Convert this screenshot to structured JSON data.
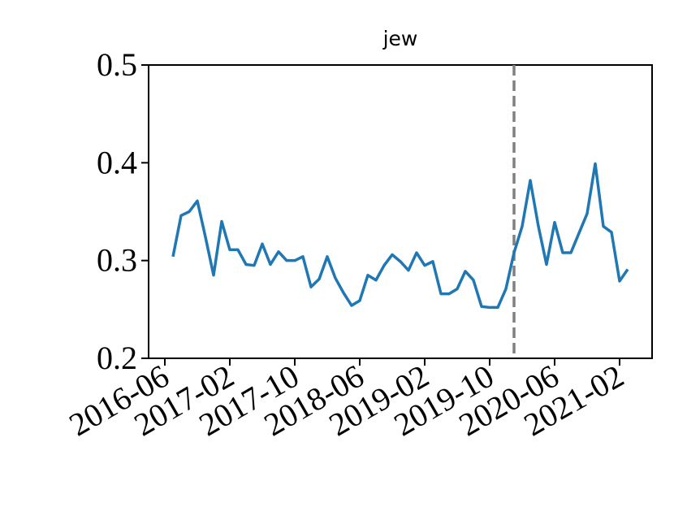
{
  "chart_data": {
    "type": "line",
    "title": "jew",
    "x": [
      "2016-07",
      "2016-08",
      "2016-09",
      "2016-10",
      "2016-11",
      "2016-12",
      "2017-01",
      "2017-02",
      "2017-03",
      "2017-04",
      "2017-05",
      "2017-06",
      "2017-07",
      "2017-08",
      "2017-09",
      "2017-10",
      "2017-11",
      "2017-12",
      "2018-01",
      "2018-02",
      "2018-03",
      "2018-04",
      "2018-05",
      "2018-06",
      "2018-07",
      "2018-08",
      "2018-09",
      "2018-10",
      "2018-11",
      "2018-12",
      "2019-01",
      "2019-02",
      "2019-03",
      "2019-04",
      "2019-05",
      "2019-06",
      "2019-07",
      "2019-08",
      "2019-09",
      "2019-10",
      "2019-11",
      "2019-12",
      "2020-01",
      "2020-02",
      "2020-03",
      "2020-04",
      "2020-05",
      "2020-06",
      "2020-07",
      "2020-08",
      "2020-09",
      "2020-10",
      "2020-11",
      "2020-12",
      "2021-01",
      "2021-02",
      "2021-03"
    ],
    "series": [
      {
        "color": "#1f77b4",
        "values": [
          0.304,
          0.346,
          0.35,
          0.361,
          0.324,
          0.285,
          0.34,
          0.311,
          0.311,
          0.296,
          0.295,
          0.317,
          0.296,
          0.309,
          0.3,
          0.3,
          0.304,
          0.273,
          0.281,
          0.304,
          0.282,
          0.267,
          0.254,
          0.259,
          0.285,
          0.28,
          0.295,
          0.306,
          0.299,
          0.29,
          0.308,
          0.295,
          0.299,
          0.266,
          0.266,
          0.271,
          0.289,
          0.28,
          0.253,
          0.252,
          0.252,
          0.271,
          0.308,
          0.335,
          0.382,
          0.335,
          0.296,
          0.339,
          0.308,
          0.308,
          0.328,
          0.348,
          0.399,
          0.335,
          0.329,
          0.279,
          0.291
        ]
      }
    ],
    "xlim": [
      "2016-04",
      "2021-06"
    ],
    "xticks": [
      "2016-06",
      "2017-02",
      "2017-10",
      "2018-06",
      "2019-02",
      "2019-10",
      "2020-06",
      "2021-02"
    ],
    "ylim": [
      0.2,
      0.5
    ],
    "yticks": [
      0.2,
      0.3,
      0.4,
      0.5
    ],
    "vline": {
      "x": "2020-01",
      "color": "#808080",
      "style": "dashed"
    }
  }
}
